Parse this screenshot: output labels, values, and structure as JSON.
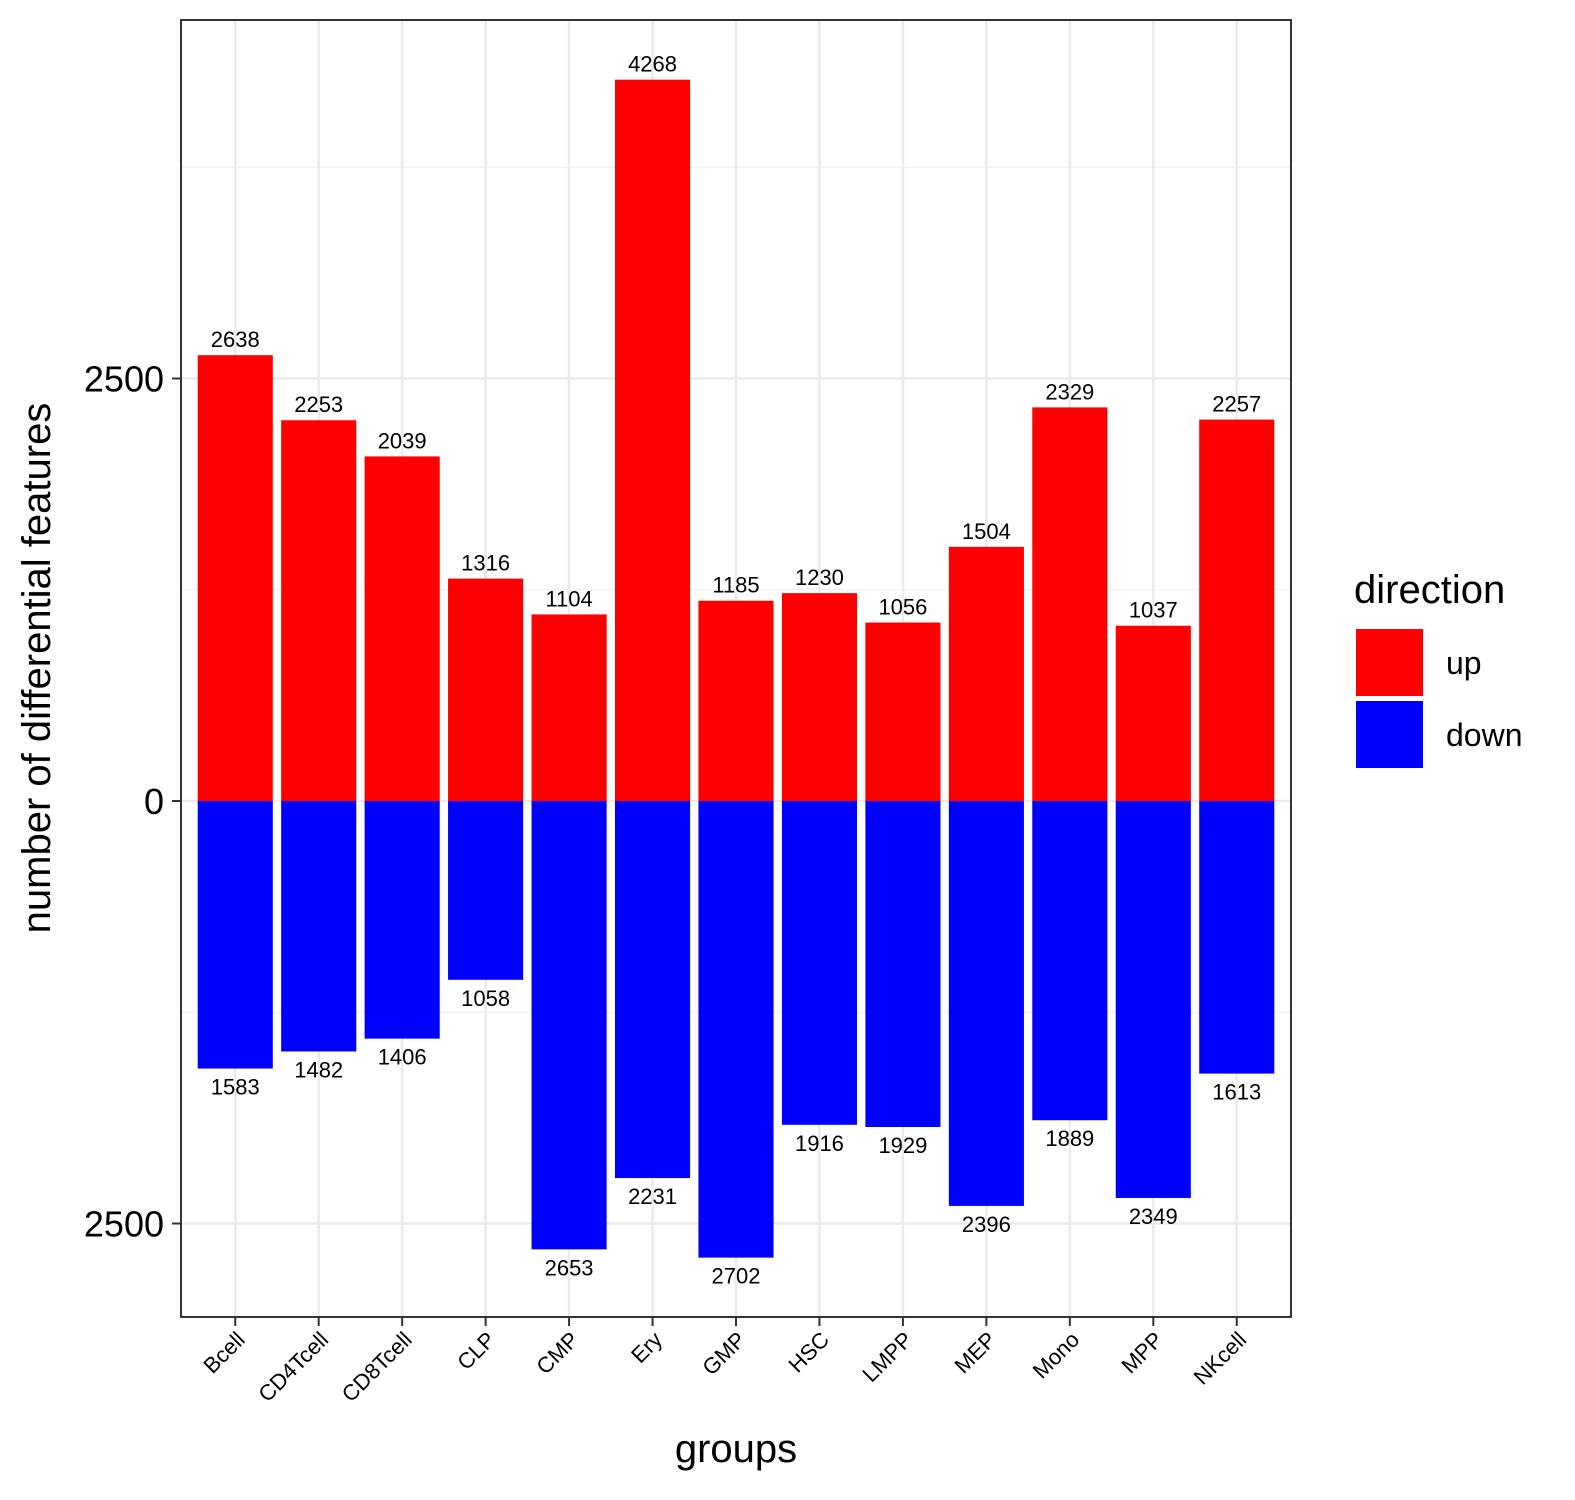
{
  "chart_data": {
    "type": "bar",
    "stacked_diverging": true,
    "categories": [
      "Bcell",
      "CD4Tcell",
      "CD8Tcell",
      "CLP",
      "CMP",
      "Ery",
      "GMP",
      "HSC",
      "LMPP",
      "MEP",
      "Mono",
      "MPP",
      "NKcell"
    ],
    "series": [
      {
        "name": "up",
        "color": "#ff0000",
        "direction": 1,
        "values": [
          2638,
          2253,
          2039,
          1316,
          1104,
          4268,
          1185,
          1230,
          1056,
          1504,
          2329,
          1037,
          2257
        ]
      },
      {
        "name": "down",
        "color": "#0000ff",
        "direction": -1,
        "values": [
          1583,
          1482,
          1406,
          1058,
          2653,
          2231,
          2702,
          1916,
          1929,
          2396,
          1889,
          2349,
          1613
        ]
      }
    ],
    "xlabel": "groups",
    "ylabel": "number of differential features",
    "ylim": [
      -3040,
      4640
    ],
    "y_ticks": [
      -2500,
      0,
      2500
    ],
    "y_tick_labels": [
      "2500",
      "0",
      "2500"
    ],
    "grid": true,
    "legend": {
      "title": "direction",
      "position": "right"
    }
  }
}
